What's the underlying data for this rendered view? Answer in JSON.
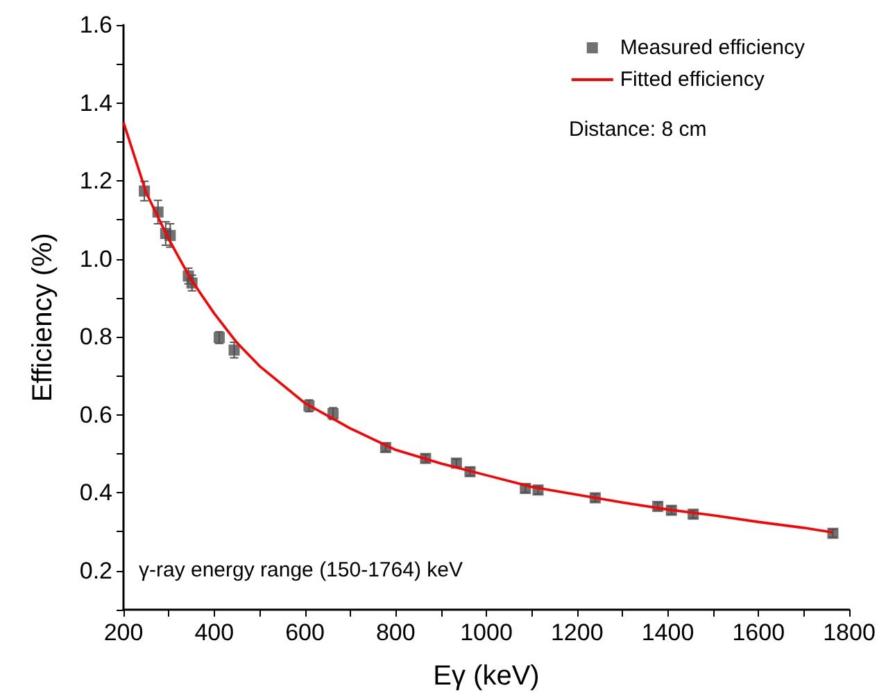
{
  "chart_data": {
    "type": "scatter",
    "xlabel": "Eγ (keV)",
    "ylabel": "Efficiency (%)",
    "xlim": [
      200,
      1800
    ],
    "ylim": [
      0.1,
      1.6
    ],
    "xticks": [
      200,
      {
        "value": 300,
        "label": null
      },
      400,
      {
        "value": 500,
        "label": null
      },
      600,
      {
        "value": 700,
        "label": null
      },
      800,
      {
        "value": 900,
        "label": null
      },
      1000,
      {
        "value": 1100,
        "label": null
      },
      1200,
      {
        "value": 1300,
        "label": null
      },
      1400,
      {
        "value": 1500,
        "label": null
      },
      1600,
      {
        "value": 1700,
        "label": null
      },
      1800
    ],
    "yticks": [
      {
        "value": 0.1,
        "label": null
      },
      0.2,
      {
        "value": 0.3,
        "label": null
      },
      0.4,
      {
        "value": 0.5,
        "label": null
      },
      0.6,
      {
        "value": 0.7,
        "label": null
      },
      0.8,
      {
        "value": 0.9,
        "label": null
      },
      {
        "value": 1,
        "label": "1.0"
      },
      {
        "value": 1.1,
        "label": null
      },
      1.2,
      {
        "value": 1.3,
        "label": null
      },
      1.4,
      {
        "value": 1.5,
        "label": null
      },
      1.6
    ],
    "grid": false,
    "legend": "top right",
    "series": [
      {
        "name": "Measured efficiency",
        "marker": "square",
        "color": "#4d4d4d",
        "x": [
          246,
          276,
          293,
          303,
          343,
          351,
          411,
          444,
          609,
          662,
          778,
          866,
          934,
          964,
          1086,
          1114,
          1240,
          1378,
          1408,
          1456,
          1764
        ],
        "values": [
          1.174,
          1.12,
          1.065,
          1.06,
          0.956,
          0.938,
          0.798,
          0.766,
          0.623,
          0.603,
          0.516,
          0.488,
          0.476,
          0.454,
          0.411,
          0.407,
          0.387,
          0.365,
          0.355,
          0.345,
          0.296
        ],
        "errors": [
          0.025,
          0.03,
          0.03,
          0.03,
          0.02,
          0.02,
          0.015,
          0.02,
          0.015,
          0.015,
          0.01,
          0.01,
          0.01,
          0.01,
          0.01,
          0.01,
          0.01,
          0.01,
          0.01,
          0.01,
          0.01
        ]
      },
      {
        "name": "Fitted efficiency",
        "type": "line",
        "marker": "none",
        "line_style": "solid",
        "color": "#ff0000",
        "x": [
          200,
          250,
          300,
          350,
          400,
          450,
          500,
          600,
          700,
          800,
          900,
          1000,
          1100,
          1200,
          1300,
          1400,
          1500,
          1600,
          1700,
          1764
        ],
        "values": [
          1.35,
          1.17,
          1.05,
          0.945,
          0.86,
          0.785,
          0.725,
          0.63,
          0.565,
          0.51,
          0.475,
          0.445,
          0.415,
          0.395,
          0.375,
          0.357,
          0.342,
          0.325,
          0.31,
          0.298
        ]
      }
    ],
    "annotations": [
      "Distance: 8 cm",
      "γ-ray energy range (150-1764) keV"
    ]
  }
}
